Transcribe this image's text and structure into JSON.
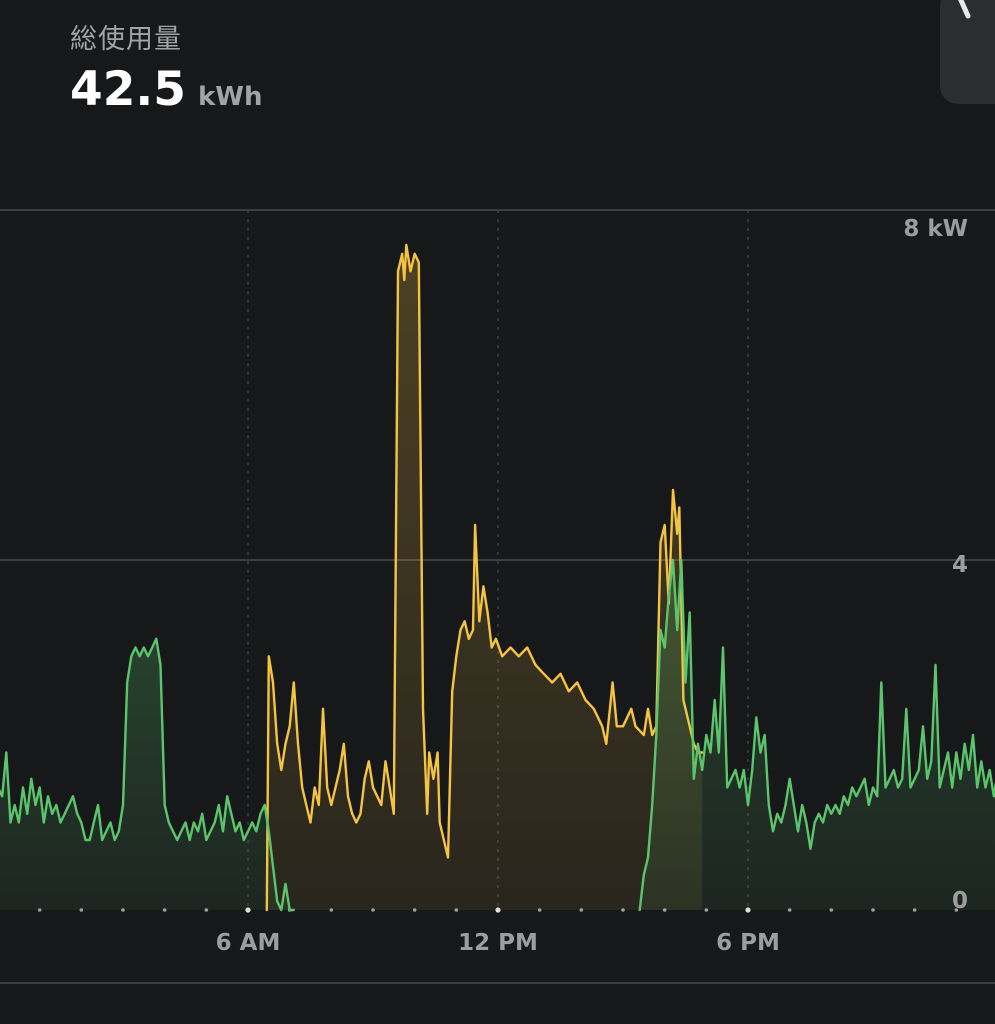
{
  "header": {
    "title": "総使用量",
    "total_value": "42.5",
    "total_unit": "kWh"
  },
  "colors": {
    "background": "#17181a",
    "grid": "#3d3e42",
    "label": "#9c9da1",
    "grid_usage": "#f5c342",
    "home_usage": "#5cc46c"
  },
  "corner_button": {
    "icon": "chevron-icon"
  },
  "chart_data": {
    "type": "area",
    "x_unit": "hours",
    "xlim": [
      0,
      24
    ],
    "ylim": [
      0,
      8
    ],
    "y_ticks": [
      {
        "value": 0,
        "label": "0"
      },
      {
        "value": 4,
        "label": "4"
      },
      {
        "value": 8,
        "label": "8 kW"
      }
    ],
    "x_ticks": [
      {
        "value": 6,
        "label": "6 AM"
      },
      {
        "value": 12,
        "label": "12 PM"
      },
      {
        "value": 18,
        "label": "6 PM"
      }
    ],
    "vertical_gridlines": [
      6,
      12,
      18
    ],
    "series": [
      {
        "key": "grid_usage",
        "color": "#f5c342",
        "points": [
          [
            6.45,
            0.0
          ],
          [
            6.5,
            2.9
          ],
          [
            6.6,
            2.6
          ],
          [
            6.7,
            1.9
          ],
          [
            6.8,
            1.6
          ],
          [
            6.9,
            1.9
          ],
          [
            7.0,
            2.1
          ],
          [
            7.1,
            2.6
          ],
          [
            7.2,
            1.9
          ],
          [
            7.3,
            1.4
          ],
          [
            7.4,
            1.2
          ],
          [
            7.5,
            1.0
          ],
          [
            7.6,
            1.4
          ],
          [
            7.7,
            1.2
          ],
          [
            7.8,
            2.3
          ],
          [
            7.9,
            1.4
          ],
          [
            8.0,
            1.2
          ],
          [
            8.1,
            1.4
          ],
          [
            8.2,
            1.6
          ],
          [
            8.3,
            1.9
          ],
          [
            8.4,
            1.3
          ],
          [
            8.5,
            1.1
          ],
          [
            8.6,
            1.0
          ],
          [
            8.7,
            1.1
          ],
          [
            8.8,
            1.5
          ],
          [
            8.9,
            1.7
          ],
          [
            9.0,
            1.4
          ],
          [
            9.1,
            1.3
          ],
          [
            9.2,
            1.2
          ],
          [
            9.3,
            1.7
          ],
          [
            9.4,
            1.4
          ],
          [
            9.5,
            1.1
          ],
          [
            9.6,
            7.3
          ],
          [
            9.7,
            7.5
          ],
          [
            9.75,
            7.2
          ],
          [
            9.8,
            7.6
          ],
          [
            9.9,
            7.3
          ],
          [
            10.0,
            7.5
          ],
          [
            10.1,
            7.4
          ],
          [
            10.2,
            2.3
          ],
          [
            10.3,
            1.1
          ],
          [
            10.35,
            1.8
          ],
          [
            10.45,
            1.5
          ],
          [
            10.55,
            1.8
          ],
          [
            10.6,
            1.0
          ],
          [
            10.8,
            0.6
          ],
          [
            10.9,
            2.5
          ],
          [
            11.0,
            2.9
          ],
          [
            11.1,
            3.2
          ],
          [
            11.2,
            3.3
          ],
          [
            11.3,
            3.1
          ],
          [
            11.4,
            3.2
          ],
          [
            11.45,
            4.4
          ],
          [
            11.55,
            3.3
          ],
          [
            11.65,
            3.7
          ],
          [
            11.75,
            3.4
          ],
          [
            11.85,
            3.0
          ],
          [
            11.95,
            3.1
          ],
          [
            12.1,
            2.9
          ],
          [
            12.3,
            3.0
          ],
          [
            12.5,
            2.9
          ],
          [
            12.7,
            3.0
          ],
          [
            12.9,
            2.8
          ],
          [
            13.1,
            2.7
          ],
          [
            13.3,
            2.6
          ],
          [
            13.5,
            2.7
          ],
          [
            13.7,
            2.5
          ],
          [
            13.9,
            2.6
          ],
          [
            14.1,
            2.4
          ],
          [
            14.3,
            2.3
          ],
          [
            14.5,
            2.1
          ],
          [
            14.6,
            1.9
          ],
          [
            14.75,
            2.6
          ],
          [
            14.85,
            2.1
          ],
          [
            15.0,
            2.1
          ],
          [
            15.2,
            2.3
          ],
          [
            15.3,
            2.1
          ],
          [
            15.5,
            2.0
          ],
          [
            15.6,
            2.3
          ],
          [
            15.7,
            2.0
          ],
          [
            15.8,
            2.1
          ],
          [
            15.9,
            4.2
          ],
          [
            16.0,
            4.4
          ],
          [
            16.1,
            3.5
          ],
          [
            16.2,
            4.8
          ],
          [
            16.3,
            4.3
          ],
          [
            16.35,
            4.6
          ],
          [
            16.45,
            2.4
          ],
          [
            16.6,
            2.1
          ],
          [
            16.7,
            1.9
          ],
          [
            16.8,
            1.8
          ],
          [
            16.9,
            1.8
          ]
        ]
      },
      {
        "key": "home_usage",
        "color": "#5cc46c",
        "points": [
          [
            0.0,
            1.4
          ],
          [
            0.1,
            1.3
          ],
          [
            0.2,
            1.8
          ],
          [
            0.3,
            1.0
          ],
          [
            0.4,
            1.2
          ],
          [
            0.5,
            1.0
          ],
          [
            0.6,
            1.4
          ],
          [
            0.7,
            1.1
          ],
          [
            0.8,
            1.5
          ],
          [
            0.9,
            1.2
          ],
          [
            1.0,
            1.4
          ],
          [
            1.1,
            1.0
          ],
          [
            1.2,
            1.3
          ],
          [
            1.3,
            1.1
          ],
          [
            1.4,
            1.2
          ],
          [
            1.5,
            1.0
          ],
          [
            1.6,
            1.1
          ],
          [
            1.7,
            1.2
          ],
          [
            1.8,
            1.3
          ],
          [
            1.9,
            1.1
          ],
          [
            2.0,
            1.0
          ],
          [
            2.1,
            0.8
          ],
          [
            2.2,
            0.8
          ],
          [
            2.3,
            1.0
          ],
          [
            2.4,
            1.2
          ],
          [
            2.5,
            0.8
          ],
          [
            2.6,
            0.9
          ],
          [
            2.7,
            1.0
          ],
          [
            2.8,
            0.8
          ],
          [
            2.9,
            0.9
          ],
          [
            3.0,
            1.2
          ],
          [
            3.1,
            2.6
          ],
          [
            3.2,
            2.9
          ],
          [
            3.3,
            3.0
          ],
          [
            3.4,
            2.9
          ],
          [
            3.5,
            3.0
          ],
          [
            3.6,
            2.9
          ],
          [
            3.7,
            3.0
          ],
          [
            3.8,
            3.1
          ],
          [
            3.9,
            2.8
          ],
          [
            4.0,
            1.2
          ],
          [
            4.1,
            1.0
          ],
          [
            4.2,
            0.9
          ],
          [
            4.3,
            0.8
          ],
          [
            4.4,
            0.9
          ],
          [
            4.5,
            1.0
          ],
          [
            4.6,
            0.8
          ],
          [
            4.7,
            1.0
          ],
          [
            4.8,
            0.9
          ],
          [
            4.9,
            1.1
          ],
          [
            5.0,
            0.8
          ],
          [
            5.1,
            0.9
          ],
          [
            5.2,
            1.0
          ],
          [
            5.3,
            1.2
          ],
          [
            5.4,
            0.9
          ],
          [
            5.5,
            1.3
          ],
          [
            5.6,
            1.1
          ],
          [
            5.7,
            0.9
          ],
          [
            5.8,
            1.0
          ],
          [
            5.9,
            0.8
          ],
          [
            6.0,
            0.9
          ],
          [
            6.1,
            1.0
          ],
          [
            6.2,
            0.9
          ],
          [
            6.3,
            1.1
          ],
          [
            6.4,
            1.2
          ],
          [
            6.5,
            0.9
          ],
          [
            6.6,
            0.5
          ],
          [
            6.7,
            0.1
          ],
          [
            6.8,
            0.0
          ],
          [
            6.9,
            0.3
          ],
          [
            7.0,
            0.0
          ],
          [
            7.1,
            0.0
          ]
        ]
      },
      {
        "key": "home_usage",
        "color": "#5cc46c",
        "points": [
          [
            15.4,
            0.0
          ],
          [
            15.5,
            0.4
          ],
          [
            15.6,
            0.6
          ],
          [
            15.7,
            1.2
          ],
          [
            15.8,
            2.0
          ],
          [
            15.9,
            3.2
          ],
          [
            16.0,
            3.0
          ],
          [
            16.1,
            3.6
          ],
          [
            16.2,
            4.0
          ],
          [
            16.3,
            3.2
          ],
          [
            16.4,
            4.0
          ],
          [
            16.5,
            2.6
          ],
          [
            16.6,
            3.4
          ],
          [
            16.7,
            1.5
          ],
          [
            16.8,
            1.9
          ],
          [
            16.9,
            1.6
          ],
          [
            17.0,
            2.0
          ],
          [
            17.1,
            1.8
          ],
          [
            17.2,
            2.4
          ],
          [
            17.3,
            1.8
          ],
          [
            17.4,
            3.0
          ],
          [
            17.5,
            1.4
          ],
          [
            17.6,
            1.5
          ],
          [
            17.7,
            1.6
          ],
          [
            17.8,
            1.4
          ],
          [
            17.9,
            1.6
          ],
          [
            18.0,
            1.2
          ],
          [
            18.1,
            1.6
          ],
          [
            18.2,
            2.2
          ],
          [
            18.3,
            1.8
          ],
          [
            18.4,
            2.0
          ],
          [
            18.5,
            1.2
          ],
          [
            18.6,
            0.9
          ],
          [
            18.7,
            1.1
          ],
          [
            18.8,
            1.0
          ],
          [
            18.9,
            1.2
          ],
          [
            19.0,
            1.5
          ],
          [
            19.1,
            1.2
          ],
          [
            19.2,
            0.9
          ],
          [
            19.3,
            1.2
          ],
          [
            19.4,
            1.0
          ],
          [
            19.5,
            0.7
          ],
          [
            19.6,
            1.0
          ],
          [
            19.7,
            1.1
          ],
          [
            19.8,
            1.0
          ],
          [
            19.9,
            1.2
          ],
          [
            20.0,
            1.1
          ],
          [
            20.1,
            1.2
          ],
          [
            20.2,
            1.1
          ],
          [
            20.3,
            1.3
          ],
          [
            20.4,
            1.2
          ],
          [
            20.5,
            1.4
          ],
          [
            20.6,
            1.3
          ],
          [
            20.7,
            1.4
          ],
          [
            20.8,
            1.5
          ],
          [
            20.9,
            1.2
          ],
          [
            21.0,
            1.4
          ],
          [
            21.1,
            1.3
          ],
          [
            21.2,
            2.6
          ],
          [
            21.3,
            1.4
          ],
          [
            21.4,
            1.5
          ],
          [
            21.5,
            1.6
          ],
          [
            21.6,
            1.4
          ],
          [
            21.7,
            1.5
          ],
          [
            21.8,
            2.3
          ],
          [
            21.9,
            1.4
          ],
          [
            22.0,
            1.5
          ],
          [
            22.1,
            1.6
          ],
          [
            22.2,
            2.1
          ],
          [
            22.3,
            1.5
          ],
          [
            22.4,
            1.7
          ],
          [
            22.5,
            2.8
          ],
          [
            22.6,
            1.4
          ],
          [
            22.7,
            1.6
          ],
          [
            22.8,
            1.8
          ],
          [
            22.9,
            1.4
          ],
          [
            23.0,
            1.8
          ],
          [
            23.1,
            1.5
          ],
          [
            23.2,
            1.9
          ],
          [
            23.3,
            1.6
          ],
          [
            23.4,
            2.0
          ],
          [
            23.5,
            1.4
          ],
          [
            23.6,
            1.7
          ],
          [
            23.7,
            1.4
          ],
          [
            23.8,
            1.6
          ],
          [
            23.9,
            1.3
          ],
          [
            24.0,
            1.6
          ]
        ]
      }
    ]
  }
}
